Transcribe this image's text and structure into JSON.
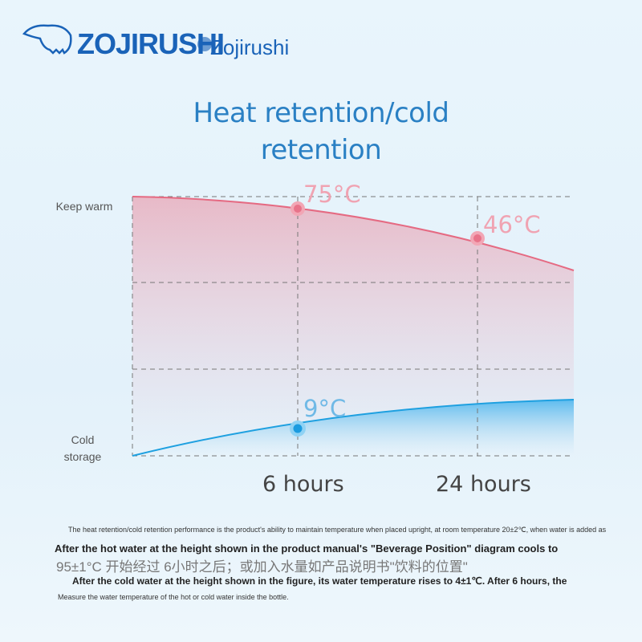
{
  "header": {
    "brand": "ZOJIRUSHI",
    "brand_alt": "Zojirushi"
  },
  "title": "Heat retention/cold retention",
  "y_labels": [
    "Keep warm",
    "Cold storage"
  ],
  "x_labels": [
    "6 hours",
    "24 hours"
  ],
  "point_labels": [
    "75°C",
    "46°C",
    "9°C"
  ],
  "notes": [
    "The heat retention/cold retention performance is the product's ability to maintain temperature when placed upright, at room temperature 20±2℃, when water is added as",
    "After the hot water at the height shown in the product manual's \"Beverage Position\" diagram cools to",
    "95±1°C 开始经过 6小时之后；或加入水量如产品说明书\"饮料的位置\"",
    "After the cold water at the height shown in the figure, its water temperature rises to 4±1℃. After 6 hours, the",
    "Measure the water temperature of the hot or cold water inside the bottle."
  ]
}
